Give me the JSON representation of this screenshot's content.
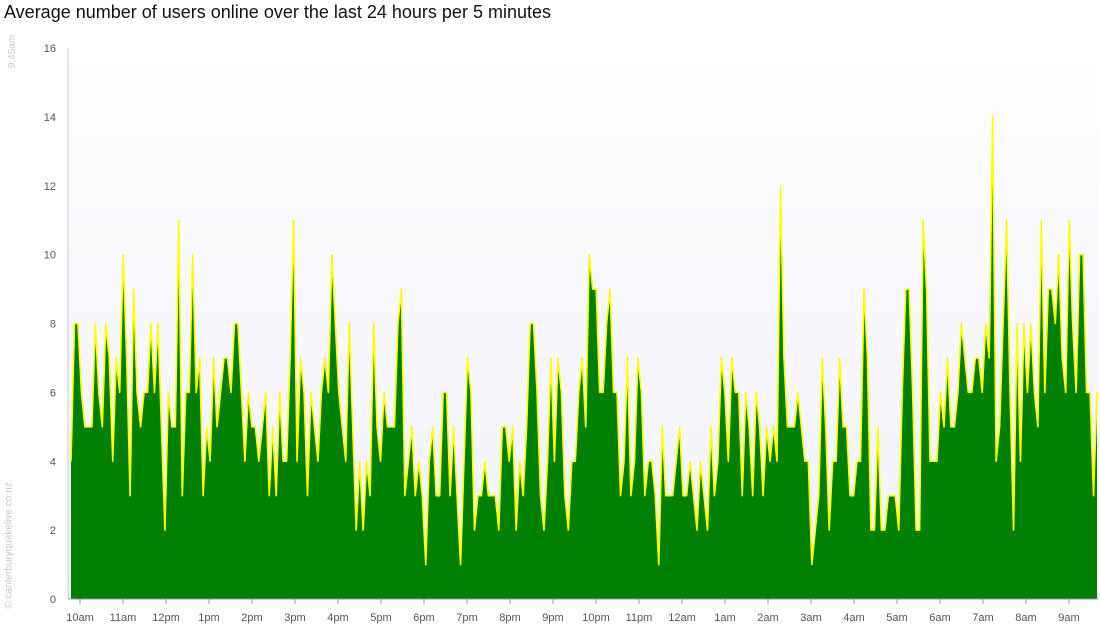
{
  "chart_data": {
    "type": "area",
    "title": "Average number of users online over the last 24 hours per 5 minutes",
    "xlabel": "",
    "ylabel": "",
    "ylim": [
      0,
      16
    ],
    "yticks": [
      0,
      2,
      4,
      6,
      8,
      10,
      12,
      14,
      16
    ],
    "xticks": [
      "10am",
      "11am",
      "12pm",
      "1pm",
      "2pm",
      "3pm",
      "4pm",
      "5pm",
      "6pm",
      "7pm",
      "8pm",
      "9pm",
      "10pm",
      "11pm",
      "12am",
      "1am",
      "2am",
      "3am",
      "4am",
      "5am",
      "6am",
      "7am",
      "8am",
      "9am"
    ],
    "grid": false,
    "legend": "none",
    "colors": {
      "fill": "#008000",
      "line": "#ffff00",
      "plot_bg_top": "#ffffff",
      "plot_bg_bottom": "#f0f0fa"
    },
    "series": [
      {
        "values": [
          4,
          8,
          8,
          6,
          5,
          5,
          5,
          8,
          6,
          5,
          8,
          7,
          4,
          7,
          6,
          10,
          7,
          3,
          9,
          6,
          5,
          6,
          6,
          8,
          6,
          8,
          5,
          2,
          6,
          5,
          5,
          11,
          3,
          6,
          6,
          10,
          6,
          7,
          3,
          5,
          4,
          7,
          5,
          6,
          7,
          7,
          6,
          8,
          8,
          6,
          4,
          6,
          5,
          5,
          4,
          5,
          6,
          3,
          5,
          3,
          6,
          4,
          4,
          7,
          11,
          4,
          7,
          6,
          3,
          6,
          5,
          4,
          6,
          7,
          6,
          10,
          8,
          6,
          5,
          4,
          8,
          5,
          2,
          4,
          2,
          4,
          3,
          8,
          5,
          4,
          6,
          5,
          5,
          5,
          8,
          9,
          3,
          4,
          5,
          3,
          4,
          3,
          1,
          4,
          5,
          3,
          3,
          6,
          6,
          3,
          5,
          3,
          1,
          4,
          7,
          6,
          2,
          3,
          3,
          4,
          3,
          3,
          3,
          2,
          5,
          5,
          4,
          5,
          2,
          4,
          3,
          5,
          8,
          8,
          6,
          3,
          2,
          4,
          7,
          4,
          7,
          6,
          3,
          2,
          4,
          4,
          6,
          7,
          5,
          10,
          9,
          9,
          6,
          6,
          8,
          9,
          6,
          6,
          3,
          4,
          7,
          3,
          4,
          7,
          6,
          3,
          4,
          4,
          3,
          1,
          5,
          3,
          3,
          3,
          4,
          5,
          3,
          3,
          4,
          3,
          2,
          4,
          3,
          2,
          5,
          3,
          4,
          7,
          6,
          4,
          7,
          6,
          6,
          3,
          6,
          5,
          3,
          6,
          5,
          3,
          5,
          4,
          5,
          4,
          12,
          7,
          5,
          5,
          5,
          6,
          5,
          4,
          4,
          1,
          2,
          3,
          7,
          5,
          2,
          4,
          4,
          7,
          5,
          5,
          3,
          3,
          4,
          4,
          9,
          7,
          2,
          2,
          5,
          2,
          2,
          3,
          3,
          3,
          2,
          6,
          9,
          9,
          6,
          2,
          2,
          11,
          9,
          4,
          4,
          4,
          6,
          5,
          7,
          5,
          5,
          6,
          8,
          7,
          6,
          6,
          7,
          7,
          6,
          8,
          7,
          14,
          4,
          5,
          8,
          11,
          6,
          2,
          8,
          4,
          8,
          6,
          8,
          6,
          5,
          11,
          6,
          9,
          9,
          8,
          10,
          7,
          6,
          11,
          8,
          6,
          10,
          10,
          6,
          6,
          3,
          6
        ]
      }
    ]
  },
  "side": {
    "time": "9:45am",
    "credit": "© canterburyquakelive.co.nz"
  }
}
